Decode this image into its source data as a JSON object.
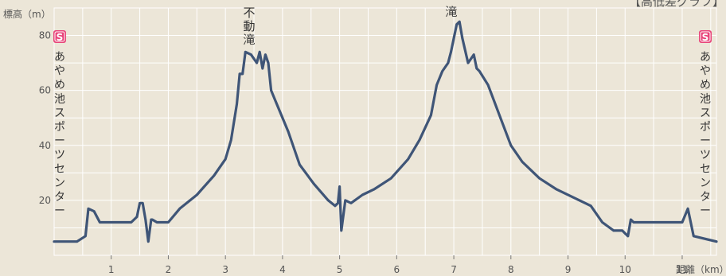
{
  "chart_data": {
    "type": "line",
    "title": "【高低差グラフ】",
    "ylabel": "標高（m）",
    "xlabel": "距離（km）",
    "xlim": [
      0,
      11.6
    ],
    "ylim": [
      0,
      90
    ],
    "x_ticks": [
      1,
      2,
      3,
      4,
      5,
      6,
      7,
      8,
      9,
      10,
      11
    ],
    "y_ticks": [
      20,
      40,
      60,
      80
    ],
    "grid": true,
    "colors": {
      "background": "#ece6d8",
      "grid": "#ffffff",
      "line": "#3f5577",
      "marker": "#e8457a"
    },
    "start_label": "あやめ池スポーツセンター",
    "end_label": "あやめ池スポーツセンター",
    "start_marker": "S",
    "end_marker": "S",
    "peaks": [
      {
        "label": "不動滝",
        "x": 3.6
      },
      {
        "label": "滝",
        "x": 7.0
      }
    ],
    "series": [
      {
        "x": [
          0.0,
          0.4,
          0.55,
          0.6,
          0.7,
          0.8,
          1.2,
          1.35,
          1.45,
          1.5,
          1.55,
          1.6,
          1.65,
          1.7,
          1.72,
          1.8,
          2.0,
          2.2,
          2.5,
          2.8,
          3.0,
          3.1,
          3.2,
          3.25,
          3.3,
          3.35,
          3.45,
          3.55,
          3.6,
          3.65,
          3.7,
          3.75,
          3.8,
          3.9,
          4.1,
          4.3,
          4.55,
          4.8,
          4.92,
          4.97,
          5.0,
          5.03,
          5.1,
          5.2,
          5.4,
          5.6,
          5.9,
          6.2,
          6.4,
          6.6,
          6.7,
          6.8,
          6.9,
          6.95,
          7.0,
          7.05,
          7.1,
          7.15,
          7.25,
          7.35,
          7.4,
          7.45,
          7.6,
          7.8,
          8.0,
          8.2,
          8.5,
          8.8,
          9.1,
          9.4,
          9.6,
          9.8,
          9.95,
          10.0,
          10.05,
          10.1,
          10.15,
          10.2,
          10.3,
          10.6,
          10.9,
          11.0,
          11.1,
          11.2,
          11.6
        ],
        "values": [
          5,
          5,
          7,
          17,
          16,
          12,
          12,
          12,
          14,
          19,
          19,
          13,
          5,
          13,
          13,
          12,
          12,
          17,
          22,
          29,
          35,
          42,
          55,
          66,
          66,
          74,
          73,
          70,
          74,
          68,
          73,
          70,
          60,
          55,
          45,
          33,
          26,
          20,
          18,
          19,
          25,
          9,
          20,
          19,
          22,
          24,
          28,
          35,
          42,
          51,
          62,
          67,
          70,
          74,
          79,
          84,
          85,
          79,
          70,
          73,
          68,
          67,
          62,
          51,
          40,
          34,
          28,
          24,
          21,
          18,
          12,
          9,
          9,
          8,
          7,
          13,
          12,
          12,
          12,
          12,
          12,
          12,
          17,
          7,
          5
        ]
      }
    ]
  }
}
